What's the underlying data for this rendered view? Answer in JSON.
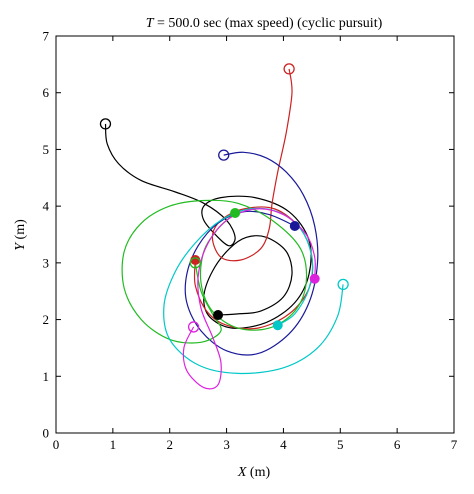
{
  "chart_data": {
    "type": "line",
    "title": {
      "var": "T",
      "text": " = 500.0 sec (max speed) (cyclic pursuit)"
    },
    "xlabel": {
      "var": "X",
      "unit": " (m)"
    },
    "ylabel": {
      "var": "Y",
      "unit": " (m)"
    },
    "xlim": [
      0,
      7
    ],
    "ylim": [
      0,
      7
    ],
    "xticks": [
      0,
      1,
      2,
      3,
      4,
      5,
      6,
      7
    ],
    "yticks": [
      0,
      1,
      2,
      3,
      4,
      5,
      6,
      7
    ],
    "grid": false,
    "legend": "none",
    "series": [
      {
        "color": "#000000",
        "start": [
          0.87,
          5.45
        ],
        "end": [
          2.85,
          2.08
        ],
        "path": [
          [
            0.87,
            5.45
          ],
          [
            0.9,
            5.1
          ],
          [
            1.1,
            4.75
          ],
          [
            1.5,
            4.45
          ],
          [
            2.1,
            4.25
          ],
          [
            2.6,
            4.05
          ],
          [
            3.0,
            3.75
          ],
          [
            3.15,
            3.45
          ],
          [
            3.05,
            3.3
          ],
          [
            2.85,
            3.45
          ],
          [
            2.6,
            3.75
          ],
          [
            2.6,
            4.0
          ],
          [
            2.9,
            4.15
          ],
          [
            3.5,
            4.15
          ],
          [
            4.1,
            3.9
          ],
          [
            4.45,
            3.4
          ],
          [
            4.45,
            2.8
          ],
          [
            4.2,
            2.3
          ],
          [
            3.7,
            1.95
          ],
          [
            3.1,
            1.85
          ],
          [
            2.7,
            2.05
          ],
          [
            2.6,
            2.4
          ],
          [
            2.75,
            2.85
          ],
          [
            3.05,
            3.25
          ],
          [
            3.35,
            3.45
          ],
          [
            3.7,
            3.45
          ],
          [
            4.05,
            3.2
          ],
          [
            4.15,
            2.8
          ],
          [
            4.0,
            2.4
          ],
          [
            3.6,
            2.15
          ],
          [
            3.2,
            2.1
          ],
          [
            2.85,
            2.08
          ]
        ]
      },
      {
        "color": "#cc2222",
        "start": [
          4.1,
          6.42
        ],
        "end": [
          2.45,
          3.05
        ],
        "path": [
          [
            4.1,
            6.42
          ],
          [
            4.15,
            6.0
          ],
          [
            4.05,
            5.3
          ],
          [
            3.9,
            4.6
          ],
          [
            3.8,
            4.05
          ],
          [
            3.75,
            3.6
          ],
          [
            3.6,
            3.25
          ],
          [
            3.25,
            3.05
          ],
          [
            2.9,
            3.1
          ],
          [
            2.75,
            3.45
          ],
          [
            2.9,
            3.75
          ],
          [
            3.3,
            3.95
          ],
          [
            3.85,
            3.95
          ],
          [
            4.3,
            3.6
          ],
          [
            4.5,
            3.1
          ],
          [
            4.45,
            2.55
          ],
          [
            4.1,
            2.1
          ],
          [
            3.55,
            1.85
          ],
          [
            3.0,
            1.9
          ],
          [
            2.65,
            2.15
          ],
          [
            2.45,
            2.6
          ],
          [
            2.45,
            3.05
          ]
        ]
      },
      {
        "color": "#1a1a99",
        "start": [
          2.95,
          4.9
        ],
        "end": [
          4.2,
          3.65
        ],
        "path": [
          [
            2.95,
            4.9
          ],
          [
            3.3,
            4.95
          ],
          [
            3.7,
            4.85
          ],
          [
            4.05,
            4.6
          ],
          [
            4.35,
            4.2
          ],
          [
            4.55,
            3.65
          ],
          [
            4.6,
            3.0
          ],
          [
            4.45,
            2.3
          ],
          [
            4.1,
            1.75
          ],
          [
            3.55,
            1.4
          ],
          [
            3.0,
            1.45
          ],
          [
            2.55,
            1.8
          ],
          [
            2.3,
            2.3
          ],
          [
            2.3,
            2.8
          ],
          [
            2.5,
            3.3
          ],
          [
            2.85,
            3.7
          ],
          [
            3.3,
            3.9
          ],
          [
            3.75,
            3.85
          ],
          [
            4.2,
            3.65
          ]
        ]
      },
      {
        "color": "#22bb22",
        "start": [
          2.45,
          3.0
        ],
        "end": [
          3.15,
          3.88
        ],
        "path": [
          [
            2.45,
            3.0
          ],
          [
            2.55,
            2.5
          ],
          [
            2.75,
            2.1
          ],
          [
            2.9,
            1.8
          ],
          [
            2.55,
            1.6
          ],
          [
            2.0,
            1.65
          ],
          [
            1.5,
            2.0
          ],
          [
            1.2,
            2.55
          ],
          [
            1.2,
            3.2
          ],
          [
            1.5,
            3.7
          ],
          [
            2.0,
            4.0
          ],
          [
            2.6,
            4.1
          ],
          [
            3.2,
            4.05
          ],
          [
            3.8,
            3.75
          ],
          [
            4.3,
            3.25
          ],
          [
            4.4,
            2.65
          ],
          [
            4.2,
            2.15
          ],
          [
            3.75,
            1.85
          ],
          [
            3.2,
            1.85
          ],
          [
            2.75,
            2.15
          ],
          [
            2.55,
            2.65
          ],
          [
            2.6,
            3.2
          ],
          [
            2.85,
            3.6
          ],
          [
            3.15,
            3.88
          ]
        ]
      },
      {
        "color": "#00c8c8",
        "start": [
          5.05,
          2.62
        ],
        "end": [
          3.9,
          1.9
        ],
        "path": [
          [
            5.05,
            2.62
          ],
          [
            4.95,
            2.05
          ],
          [
            4.6,
            1.5
          ],
          [
            4.0,
            1.15
          ],
          [
            3.2,
            1.05
          ],
          [
            2.5,
            1.2
          ],
          [
            2.0,
            1.65
          ],
          [
            1.9,
            2.25
          ],
          [
            2.1,
            2.85
          ],
          [
            2.45,
            3.35
          ],
          [
            2.9,
            3.75
          ],
          [
            3.4,
            3.95
          ],
          [
            3.9,
            3.9
          ],
          [
            4.3,
            3.6
          ],
          [
            4.5,
            3.1
          ],
          [
            4.45,
            2.55
          ],
          [
            4.2,
            2.1
          ],
          [
            3.9,
            1.9
          ]
        ]
      },
      {
        "color": "#dd22dd",
        "start": [
          2.42,
          1.87
        ],
        "end": [
          4.55,
          2.72
        ],
        "path": [
          [
            2.42,
            1.87
          ],
          [
            2.25,
            1.5
          ],
          [
            2.3,
            1.1
          ],
          [
            2.6,
            0.8
          ],
          [
            2.85,
            0.85
          ],
          [
            2.9,
            1.25
          ],
          [
            2.75,
            1.7
          ],
          [
            2.55,
            2.2
          ],
          [
            2.5,
            2.75
          ],
          [
            2.65,
            3.3
          ],
          [
            3.0,
            3.75
          ],
          [
            3.5,
            3.95
          ],
          [
            4.0,
            3.85
          ],
          [
            4.4,
            3.5
          ],
          [
            4.55,
            3.1
          ],
          [
            4.55,
            2.72
          ]
        ]
      }
    ]
  }
}
